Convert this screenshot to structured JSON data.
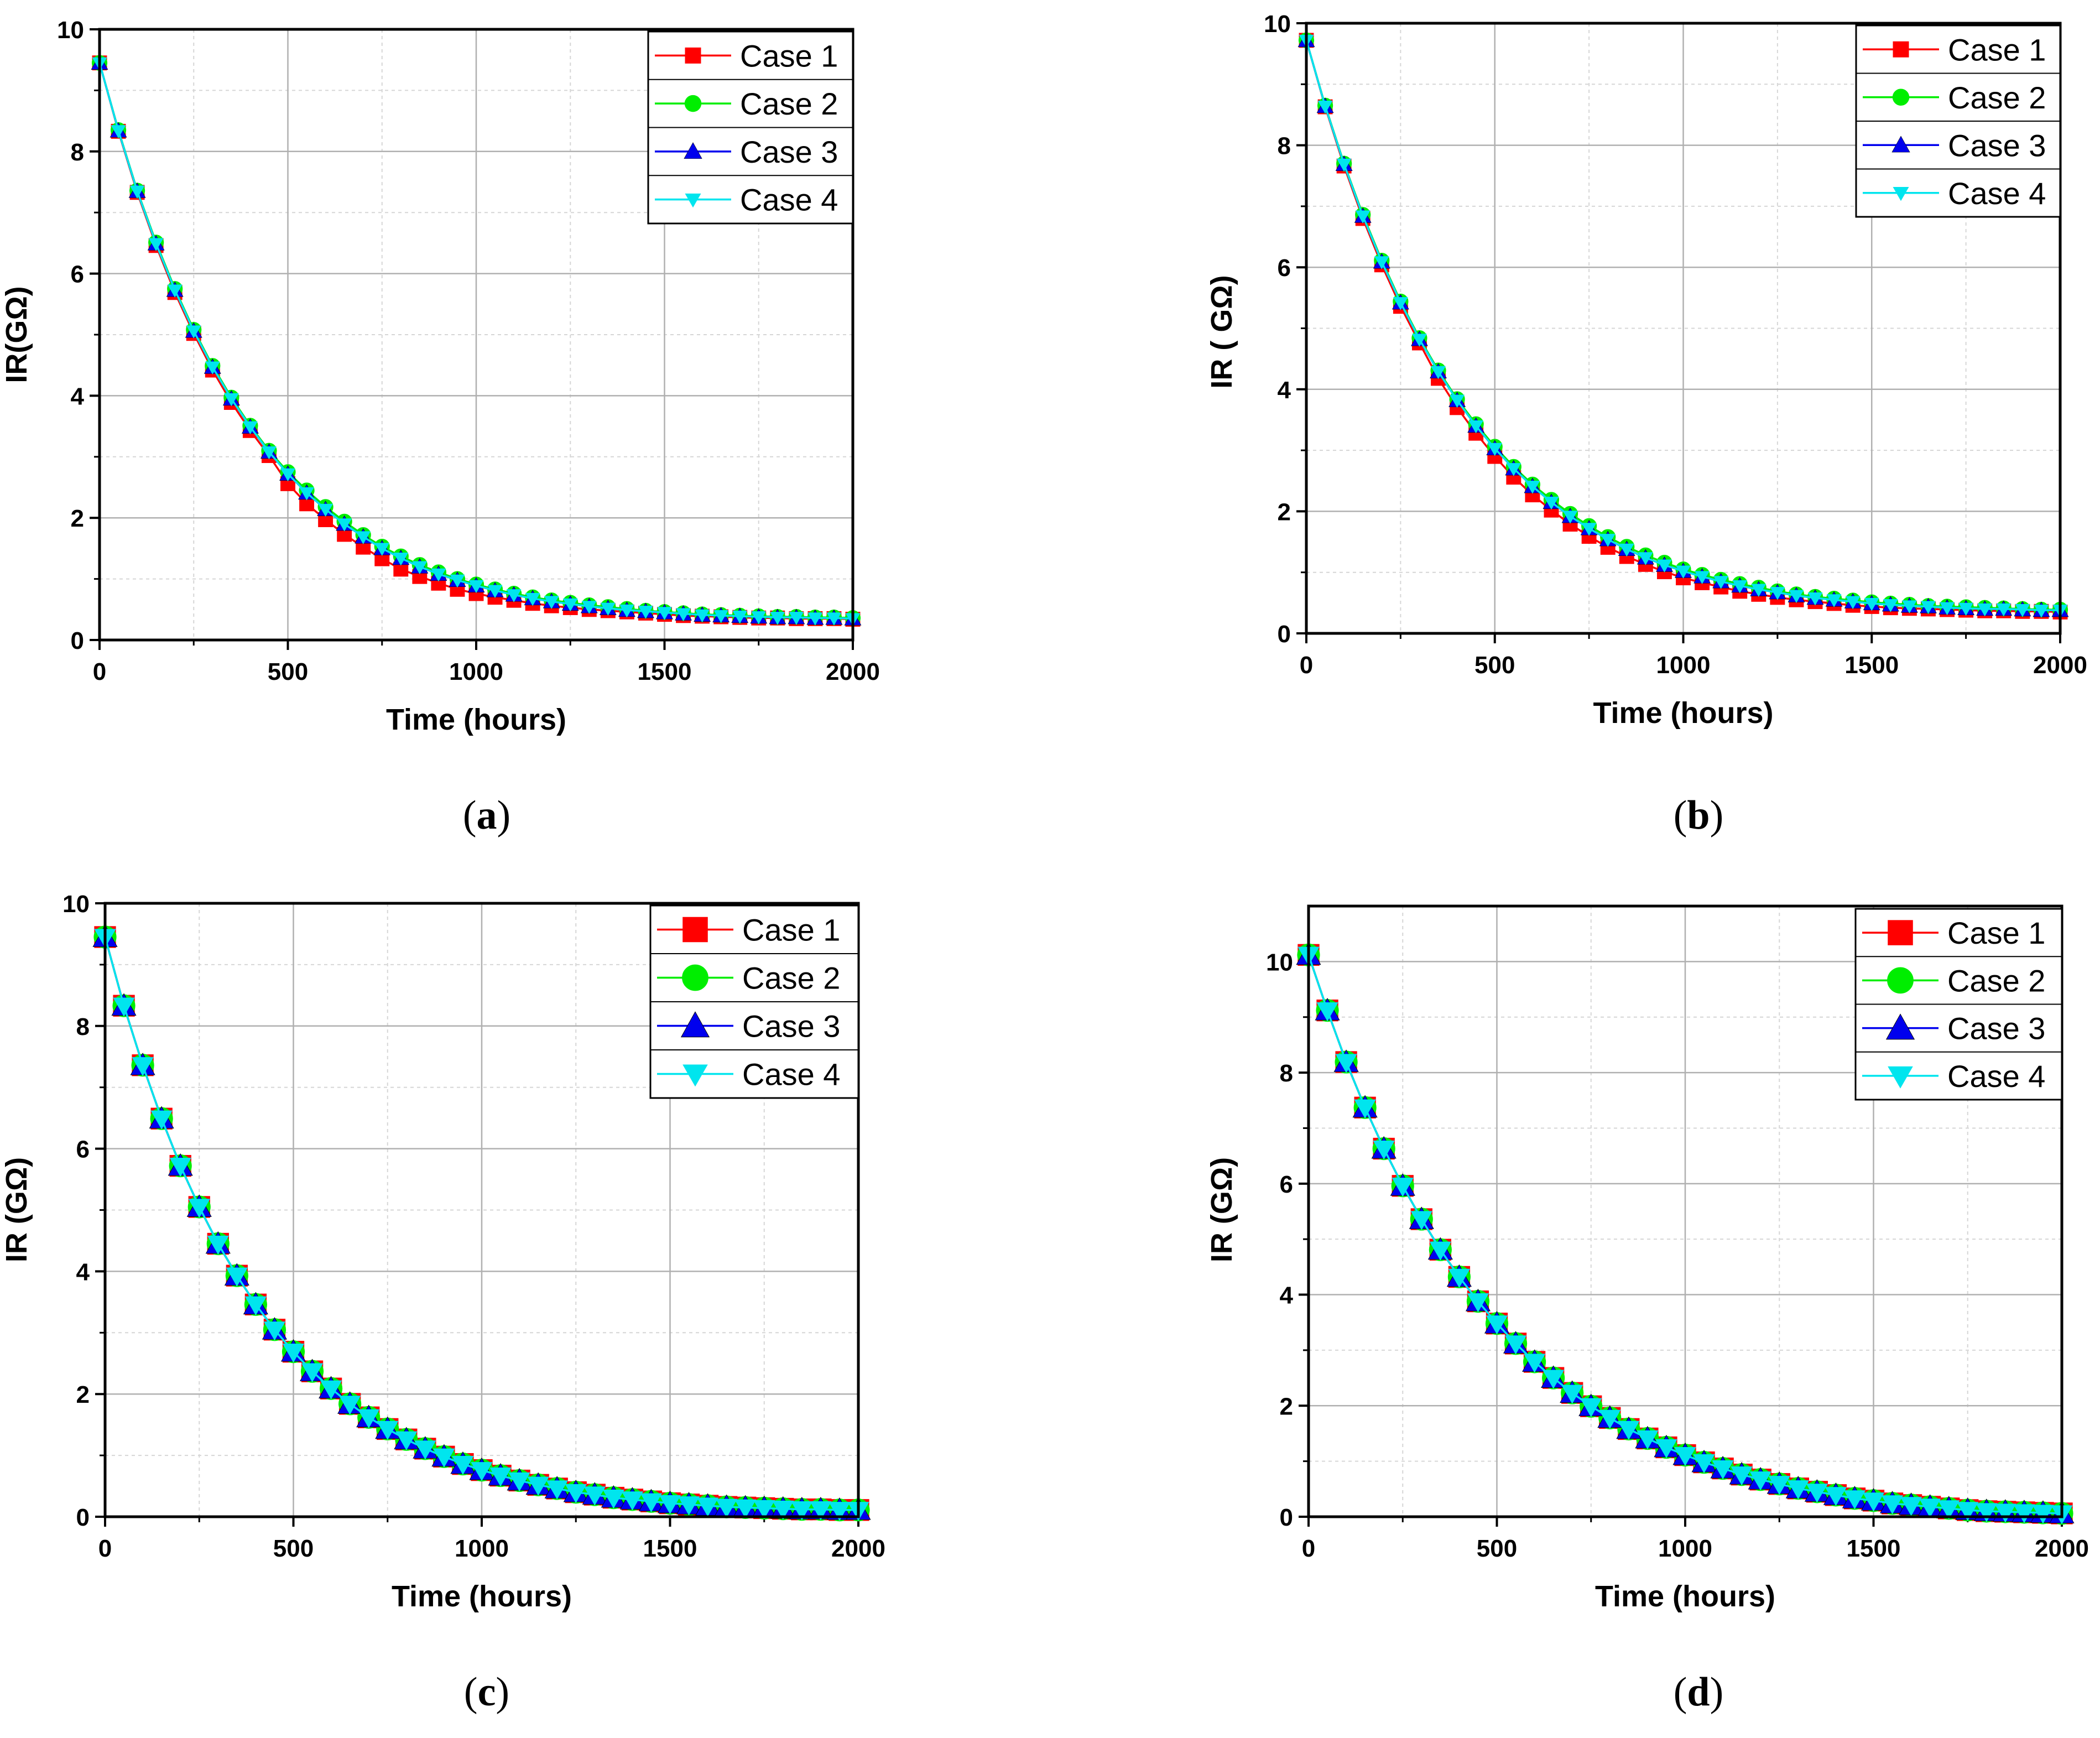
{
  "colors": {
    "case1": "#ff0000",
    "case2": "#00ee00",
    "case3": "#0000ee",
    "case4": "#00e5ee",
    "grid_major": "#b0b0b0",
    "grid_minor": "#d6d6d6"
  },
  "chart_data": [
    {
      "id": "a",
      "caption": "a",
      "type": "line",
      "xlabel": "Time (hours)",
      "ylabel": "IR(GΩ)",
      "xlim": [
        0,
        2000
      ],
      "ylim": [
        0,
        10
      ],
      "xticks": [
        "0",
        "500",
        "1000",
        "1500",
        "2000"
      ],
      "yticks": [
        "0",
        "2",
        "4",
        "6",
        "8",
        "10"
      ],
      "legend_position": "top-right",
      "legend_style": "small",
      "x": [
        0,
        50,
        100,
        150,
        200,
        250,
        300,
        350,
        400,
        450,
        500,
        550,
        600,
        650,
        700,
        750,
        800,
        850,
        900,
        950,
        1000,
        1050,
        1100,
        1150,
        1200,
        1250,
        1300,
        1350,
        1400,
        1450,
        1500,
        1550,
        1600,
        1650,
        1700,
        1750,
        1800,
        1850,
        1900,
        1950,
        2000
      ],
      "series": [
        {
          "name": "Case 1",
          "marker": "square",
          "color": "#ff0000",
          "values": [
            9.45,
            8.33,
            7.33,
            6.46,
            5.69,
            5.02,
            4.42,
            3.89,
            3.43,
            3.02,
            2.56,
            2.23,
            1.97,
            1.73,
            1.52,
            1.33,
            1.16,
            1.04,
            0.93,
            0.83,
            0.76,
            0.7,
            0.65,
            0.6,
            0.56,
            0.53,
            0.5,
            0.48,
            0.46,
            0.44,
            0.42,
            0.4,
            0.39,
            0.38,
            0.37,
            0.36,
            0.36,
            0.35,
            0.35,
            0.35,
            0.34
          ]
        },
        {
          "name": "Case 2",
          "marker": "circle",
          "color": "#00ee00",
          "values": [
            9.45,
            8.35,
            7.36,
            6.51,
            5.75,
            5.08,
            4.49,
            3.97,
            3.51,
            3.1,
            2.75,
            2.45,
            2.18,
            1.94,
            1.72,
            1.53,
            1.37,
            1.23,
            1.11,
            1.0,
            0.91,
            0.83,
            0.76,
            0.7,
            0.65,
            0.61,
            0.57,
            0.54,
            0.51,
            0.48,
            0.46,
            0.44,
            0.42,
            0.41,
            0.4,
            0.39,
            0.38,
            0.38,
            0.37,
            0.37,
            0.36
          ]
        },
        {
          "name": "Case 3",
          "marker": "triangle-up",
          "color": "#0000ee",
          "values": [
            9.45,
            8.34,
            7.35,
            6.49,
            5.73,
            5.06,
            4.47,
            3.95,
            3.49,
            3.08,
            2.72,
            2.41,
            2.14,
            1.9,
            1.69,
            1.5,
            1.34,
            1.2,
            1.08,
            0.98,
            0.89,
            0.81,
            0.74,
            0.68,
            0.63,
            0.59,
            0.55,
            0.52,
            0.49,
            0.47,
            0.45,
            0.43,
            0.41,
            0.4,
            0.39,
            0.38,
            0.37,
            0.37,
            0.36,
            0.36,
            0.35
          ]
        },
        {
          "name": "Case 4",
          "marker": "triangle-down",
          "color": "#00e5ee",
          "values": [
            9.45,
            8.34,
            7.35,
            6.49,
            5.73,
            5.06,
            4.47,
            3.95,
            3.49,
            3.08,
            2.72,
            2.41,
            2.14,
            1.9,
            1.69,
            1.5,
            1.34,
            1.2,
            1.08,
            0.98,
            0.89,
            0.81,
            0.74,
            0.68,
            0.63,
            0.59,
            0.55,
            0.52,
            0.49,
            0.47,
            0.45,
            0.43,
            0.41,
            0.4,
            0.39,
            0.38,
            0.37,
            0.37,
            0.36,
            0.36,
            0.35
          ]
        }
      ]
    },
    {
      "id": "b",
      "caption": "b",
      "type": "line",
      "xlabel": "Time (hours)",
      "ylabel": "IR ( GΩ)",
      "xlim": [
        0,
        2000
      ],
      "ylim": [
        0,
        10
      ],
      "xticks": [
        "0",
        "500",
        "1000",
        "1500",
        "2000"
      ],
      "yticks": [
        "0",
        "2",
        "4",
        "6",
        "8",
        "10"
      ],
      "legend_position": "top-right",
      "legend_style": "small",
      "x": [
        0,
        50,
        100,
        150,
        200,
        250,
        300,
        350,
        400,
        450,
        500,
        550,
        600,
        650,
        700,
        750,
        800,
        850,
        900,
        950,
        1000,
        1050,
        1100,
        1150,
        1200,
        1250,
        1300,
        1350,
        1400,
        1450,
        1500,
        1550,
        1600,
        1650,
        1700,
        1750,
        1800,
        1850,
        1900,
        1950,
        2000
      ],
      "series": [
        {
          "name": "Case 1",
          "marker": "square",
          "color": "#ff0000",
          "values": [
            9.72,
            8.63,
            7.66,
            6.8,
            6.04,
            5.36,
            4.76,
            4.18,
            3.7,
            3.28,
            2.9,
            2.56,
            2.27,
            2.02,
            1.79,
            1.59,
            1.41,
            1.26,
            1.13,
            1.01,
            0.91,
            0.83,
            0.76,
            0.69,
            0.64,
            0.59,
            0.55,
            0.52,
            0.49,
            0.46,
            0.44,
            0.42,
            0.41,
            0.4,
            0.39,
            0.38,
            0.37,
            0.37,
            0.36,
            0.36,
            0.35
          ]
        },
        {
          "name": "Case 2",
          "marker": "circle",
          "color": "#00ee00",
          "values": [
            9.72,
            8.65,
            7.7,
            6.86,
            6.11,
            5.44,
            4.84,
            4.31,
            3.84,
            3.43,
            3.06,
            2.73,
            2.44,
            2.19,
            1.96,
            1.76,
            1.58,
            1.42,
            1.28,
            1.16,
            1.05,
            0.96,
            0.88,
            0.81,
            0.75,
            0.69,
            0.64,
            0.6,
            0.57,
            0.54,
            0.51,
            0.49,
            0.47,
            0.45,
            0.44,
            0.43,
            0.42,
            0.41,
            0.4,
            0.39,
            0.39
          ]
        },
        {
          "name": "Case 3",
          "marker": "triangle-up",
          "color": "#0000ee",
          "values": [
            9.72,
            8.64,
            7.69,
            6.84,
            6.09,
            5.42,
            4.82,
            4.29,
            3.82,
            3.4,
            3.03,
            2.7,
            2.41,
            2.15,
            1.92,
            1.72,
            1.54,
            1.38,
            1.24,
            1.12,
            1.02,
            0.93,
            0.85,
            0.78,
            0.72,
            0.67,
            0.62,
            0.58,
            0.55,
            0.52,
            0.49,
            0.47,
            0.45,
            0.44,
            0.42,
            0.41,
            0.4,
            0.4,
            0.39,
            0.38,
            0.38
          ]
        },
        {
          "name": "Case 4",
          "marker": "triangle-down",
          "color": "#00e5ee",
          "values": [
            9.72,
            8.64,
            7.69,
            6.84,
            6.09,
            5.42,
            4.82,
            4.29,
            3.82,
            3.4,
            3.03,
            2.7,
            2.41,
            2.15,
            1.92,
            1.72,
            1.54,
            1.38,
            1.24,
            1.12,
            1.02,
            0.93,
            0.85,
            0.78,
            0.72,
            0.67,
            0.62,
            0.58,
            0.55,
            0.52,
            0.49,
            0.47,
            0.45,
            0.44,
            0.42,
            0.41,
            0.4,
            0.4,
            0.39,
            0.38,
            0.38
          ]
        }
      ]
    },
    {
      "id": "c",
      "caption": "c",
      "type": "line",
      "xlabel": "Time (hours)",
      "ylabel": "IR (GΩ)",
      "xlim": [
        0,
        2000
      ],
      "ylim": [
        0,
        10
      ],
      "xticks": [
        "0",
        "500",
        "1000",
        "1500",
        "2000"
      ],
      "yticks": [
        "0",
        "2",
        "4",
        "6",
        "8",
        "10"
      ],
      "legend_position": "top-right",
      "legend_style": "large",
      "x": [
        0,
        50,
        100,
        150,
        200,
        250,
        300,
        350,
        400,
        450,
        500,
        550,
        600,
        650,
        700,
        750,
        800,
        850,
        900,
        950,
        1000,
        1050,
        1100,
        1150,
        1200,
        1250,
        1300,
        1350,
        1400,
        1450,
        1500,
        1550,
        1600,
        1650,
        1700,
        1750,
        1800,
        1850,
        1900,
        1950,
        2000
      ],
      "series": [
        {
          "name": "Case 1",
          "marker": "square",
          "color": "#ff0000",
          "values": [
            9.45,
            8.33,
            7.36,
            6.49,
            5.72,
            5.05,
            4.45,
            3.93,
            3.46,
            3.05,
            2.69,
            2.37,
            2.09,
            1.84,
            1.62,
            1.43,
            1.26,
            1.11,
            0.98,
            0.86,
            0.76,
            0.67,
            0.59,
            0.52,
            0.46,
            0.4,
            0.36,
            0.31,
            0.28,
            0.25,
            0.22,
            0.2,
            0.18,
            0.16,
            0.15,
            0.14,
            0.13,
            0.12,
            0.12,
            0.11,
            0.11
          ]
        },
        {
          "name": "Case 2",
          "marker": "circle",
          "color": "#00ee00",
          "values": [
            9.45,
            8.33,
            7.36,
            6.49,
            5.72,
            5.05,
            4.45,
            3.93,
            3.46,
            3.05,
            2.69,
            2.37,
            2.09,
            1.84,
            1.62,
            1.43,
            1.26,
            1.11,
            0.98,
            0.86,
            0.76,
            0.67,
            0.59,
            0.52,
            0.46,
            0.4,
            0.36,
            0.31,
            0.28,
            0.25,
            0.22,
            0.2,
            0.18,
            0.16,
            0.15,
            0.14,
            0.13,
            0.12,
            0.12,
            0.11,
            0.11
          ]
        },
        {
          "name": "Case 3",
          "marker": "triangle-up",
          "color": "#0000ee",
          "values": [
            9.45,
            8.33,
            7.36,
            6.49,
            5.72,
            5.05,
            4.45,
            3.93,
            3.46,
            3.05,
            2.69,
            2.37,
            2.09,
            1.84,
            1.62,
            1.43,
            1.26,
            1.11,
            0.98,
            0.86,
            0.76,
            0.67,
            0.59,
            0.52,
            0.46,
            0.4,
            0.36,
            0.31,
            0.28,
            0.25,
            0.22,
            0.2,
            0.18,
            0.16,
            0.15,
            0.14,
            0.13,
            0.12,
            0.12,
            0.11,
            0.11
          ]
        },
        {
          "name": "Case 4",
          "marker": "triangle-down",
          "color": "#00e5ee",
          "values": [
            9.45,
            8.33,
            7.36,
            6.49,
            5.72,
            5.05,
            4.45,
            3.93,
            3.46,
            3.05,
            2.69,
            2.37,
            2.09,
            1.84,
            1.62,
            1.43,
            1.26,
            1.11,
            0.98,
            0.86,
            0.76,
            0.67,
            0.59,
            0.52,
            0.46,
            0.4,
            0.36,
            0.31,
            0.28,
            0.25,
            0.22,
            0.2,
            0.18,
            0.16,
            0.15,
            0.14,
            0.13,
            0.12,
            0.12,
            0.11,
            0.11
          ]
        }
      ]
    },
    {
      "id": "d",
      "caption": "d",
      "type": "line",
      "xlabel": "Time (hours)",
      "ylabel": "IR (GΩ)",
      "xlim": [
        0,
        2000
      ],
      "ylim": [
        0,
        11
      ],
      "xticks": [
        "0",
        "500",
        "1000",
        "1500",
        "2000"
      ],
      "yticks": [
        "0",
        "2",
        "4",
        "6",
        "8",
        "10"
      ],
      "legend_position": "top-right",
      "legend_style": "large",
      "x": [
        0,
        50,
        100,
        150,
        200,
        250,
        300,
        350,
        400,
        450,
        500,
        550,
        600,
        650,
        700,
        750,
        800,
        850,
        900,
        950,
        1000,
        1050,
        1100,
        1150,
        1200,
        1250,
        1300,
        1350,
        1400,
        1450,
        1500,
        1550,
        1600,
        1650,
        1700,
        1750,
        1800,
        1850,
        1900,
        1950,
        2000
      ],
      "series": [
        {
          "name": "Case 1",
          "marker": "square",
          "color": "#ff0000",
          "values": [
            10.12,
            9.12,
            8.19,
            7.37,
            6.63,
            5.96,
            5.36,
            4.81,
            4.32,
            3.88,
            3.48,
            3.12,
            2.79,
            2.5,
            2.23,
            1.99,
            1.78,
            1.58,
            1.41,
            1.25,
            1.11,
            0.98,
            0.87,
            0.76,
            0.67,
            0.59,
            0.51,
            0.45,
            0.39,
            0.33,
            0.29,
            0.24,
            0.21,
            0.18,
            0.15,
            0.12,
            0.1,
            0.09,
            0.08,
            0.07,
            0.06
          ]
        },
        {
          "name": "Case 2",
          "marker": "circle",
          "color": "#00ee00",
          "values": [
            10.12,
            9.12,
            8.19,
            7.37,
            6.63,
            5.96,
            5.36,
            4.81,
            4.32,
            3.88,
            3.48,
            3.12,
            2.79,
            2.5,
            2.23,
            1.99,
            1.78,
            1.58,
            1.41,
            1.25,
            1.11,
            0.98,
            0.87,
            0.76,
            0.67,
            0.59,
            0.51,
            0.45,
            0.39,
            0.33,
            0.29,
            0.24,
            0.21,
            0.18,
            0.15,
            0.12,
            0.1,
            0.09,
            0.08,
            0.07,
            0.06
          ]
        },
        {
          "name": "Case 3",
          "marker": "triangle-up",
          "color": "#0000ee",
          "values": [
            10.12,
            9.12,
            8.19,
            7.37,
            6.63,
            5.96,
            5.36,
            4.81,
            4.32,
            3.88,
            3.48,
            3.12,
            2.79,
            2.5,
            2.23,
            1.99,
            1.78,
            1.58,
            1.41,
            1.25,
            1.11,
            0.98,
            0.87,
            0.76,
            0.67,
            0.59,
            0.51,
            0.45,
            0.39,
            0.33,
            0.29,
            0.24,
            0.21,
            0.18,
            0.15,
            0.12,
            0.1,
            0.09,
            0.08,
            0.07,
            0.06
          ]
        },
        {
          "name": "Case 4",
          "marker": "triangle-down",
          "color": "#00e5ee",
          "values": [
            10.12,
            9.12,
            8.19,
            7.37,
            6.63,
            5.96,
            5.36,
            4.81,
            4.32,
            3.88,
            3.48,
            3.12,
            2.79,
            2.5,
            2.23,
            1.99,
            1.78,
            1.58,
            1.41,
            1.25,
            1.11,
            0.98,
            0.87,
            0.76,
            0.67,
            0.59,
            0.51,
            0.45,
            0.39,
            0.33,
            0.29,
            0.24,
            0.21,
            0.18,
            0.15,
            0.12,
            0.1,
            0.09,
            0.08,
            0.07,
            0.06
          ]
        }
      ]
    }
  ]
}
